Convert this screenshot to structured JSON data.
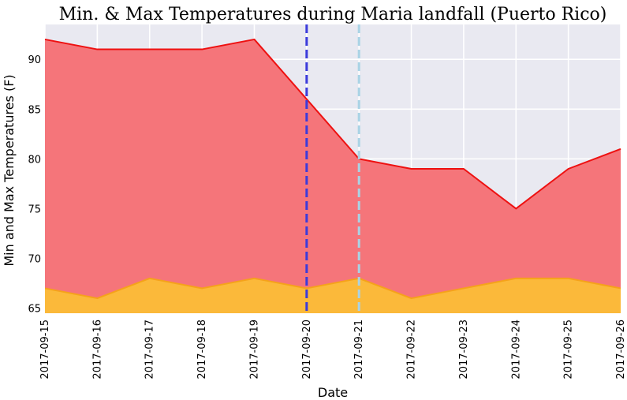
{
  "chart_data": {
    "type": "area",
    "title": "Min. & Max Temperatures during Maria landfall (Puerto Rico)",
    "xlabel": "Date",
    "ylabel": "Min and Max Temperatures (F)",
    "x": [
      "2017-09-15",
      "2017-09-16",
      "2017-09-17",
      "2017-09-18",
      "2017-09-19",
      "2017-09-20",
      "2017-09-21",
      "2017-09-22",
      "2017-09-23",
      "2017-09-24",
      "2017-09-25",
      "2017-09-26"
    ],
    "series": [
      {
        "values": [
          92,
          91,
          91,
          91,
          92,
          86,
          80,
          79,
          79,
          75,
          79,
          81
        ],
        "color": "#f5757a",
        "line_color": "#ee1111"
      },
      {
        "values": [
          67,
          66,
          68,
          67,
          68,
          67,
          68,
          66,
          67,
          68,
          68,
          67
        ],
        "color": "#fbb93a",
        "line_color": "#f5a21a"
      }
    ],
    "yticks": [
      65,
      70,
      75,
      80,
      85,
      90
    ],
    "ylim": [
      64.5,
      93.5
    ],
    "vlines": [
      {
        "x": "2017-09-20",
        "color": "#3b3bdb",
        "style": "dashed"
      },
      {
        "x": "2017-09-21",
        "color": "#a9d3e5",
        "style": "dashed"
      }
    ],
    "grid": true,
    "background": "#e9e9f1"
  }
}
